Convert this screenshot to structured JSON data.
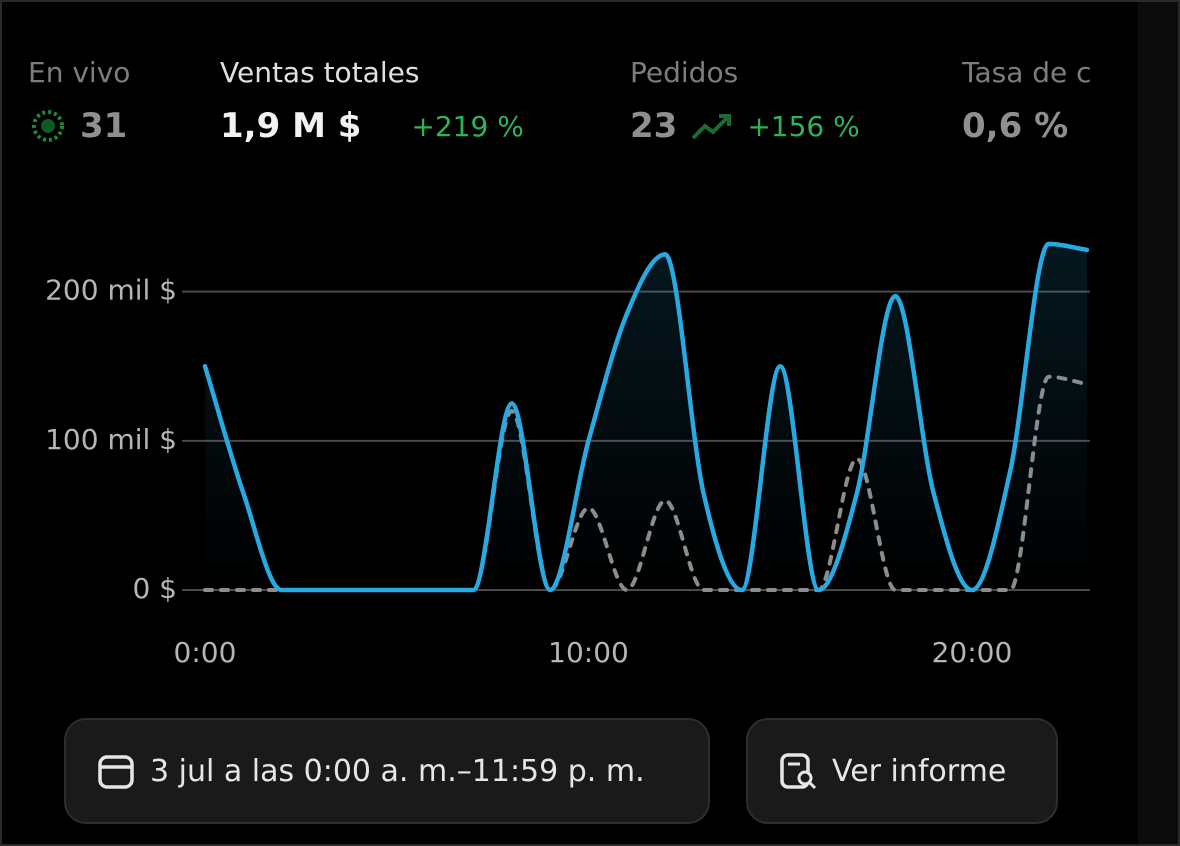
{
  "stats": [
    {
      "label": "En vivo",
      "value": "31"
    },
    {
      "label": "Ventas totales",
      "value": "1,9 M $",
      "change": "+219 %"
    },
    {
      "label": "Pedidos",
      "value": "23",
      "change": "+156 %"
    },
    {
      "label": "Tasa de c",
      "value": "0,6 %"
    }
  ],
  "chart_data": {
    "type": "line",
    "x": [
      0,
      1,
      2,
      3,
      4,
      5,
      6,
      7,
      8,
      9,
      10,
      11,
      12,
      13,
      14,
      15,
      16,
      17,
      18,
      19,
      20,
      21,
      22,
      23
    ],
    "series": [
      {
        "color": "#27a9e1",
        "values": [
          150000,
          65000,
          0,
          0,
          0,
          0,
          0,
          0,
          125000,
          0,
          100000,
          185000,
          225000,
          65000,
          0,
          150000,
          0,
          65000,
          197000,
          65000,
          0,
          80000,
          232000,
          228000
        ]
      },
      {
        "color": "#8c8c8c",
        "dashed": true,
        "values": [
          0,
          0,
          0,
          0,
          0,
          0,
          0,
          0,
          120000,
          0,
          55000,
          0,
          60000,
          0,
          0,
          0,
          0,
          88000,
          0,
          0,
          0,
          0,
          143000,
          138000
        ]
      }
    ],
    "xlim": [
      0,
      23
    ],
    "xticks": [
      {
        "value": 0,
        "label": "0:00"
      },
      {
        "value": 10,
        "label": "10:00"
      },
      {
        "value": 20,
        "label": "20:00"
      }
    ],
    "ylim": [
      0,
      240000
    ],
    "yticks": [
      {
        "value": 0,
        "label": "0 $"
      },
      {
        "value": 100000,
        "label": "100 mil $"
      },
      {
        "value": 200000,
        "label": "200 mil $"
      }
    ],
    "grid": true
  },
  "buttons": [
    "3 jul a las 0:00 a. m.–11:59 p. m.",
    "Ver informe"
  ]
}
